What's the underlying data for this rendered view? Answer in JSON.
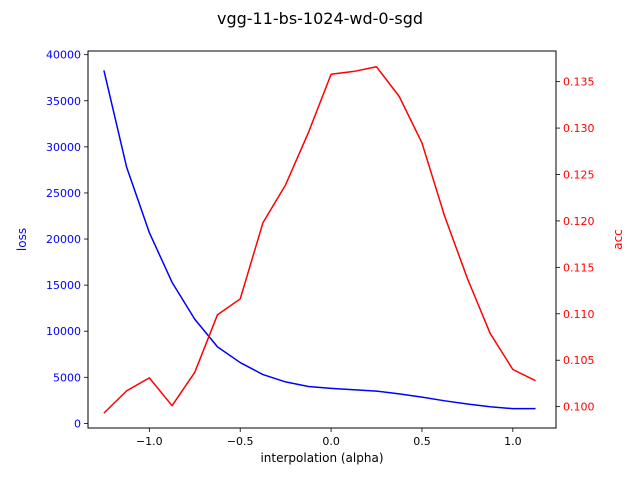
{
  "chart_data": {
    "type": "line",
    "title": "vgg-11-bs-1024-wd-0-sgd",
    "xlabel": "interpolation (alpha)",
    "ylabel_left": "loss",
    "ylabel_right": "acc",
    "xlim": [
      -1.3375,
      1.2375
    ],
    "ylim_left": [
      -500,
      40400
    ],
    "ylim_right": [
      0.0977,
      0.1383
    ],
    "x_ticks": [
      -1.0,
      -0.5,
      0.0,
      0.5,
      1.0
    ],
    "x_tick_labels": [
      "−1.0",
      "−0.5",
      "0.0",
      "0.5",
      "1.0"
    ],
    "y_left_ticks": [
      0,
      5000,
      10000,
      15000,
      20000,
      25000,
      30000,
      35000,
      40000
    ],
    "y_left_tick_labels": [
      "0",
      "5000",
      "10000",
      "15000",
      "20000",
      "25000",
      "30000",
      "35000",
      "40000"
    ],
    "y_right_ticks": [
      0.1,
      0.105,
      0.11,
      0.115,
      0.12,
      0.125,
      0.13,
      0.135
    ],
    "y_right_tick_labels": [
      "0.100",
      "0.105",
      "0.110",
      "0.115",
      "0.120",
      "0.125",
      "0.130",
      "0.135"
    ],
    "x": [
      -1.25,
      -1.125,
      -1.0,
      -0.875,
      -0.75,
      -0.625,
      -0.5,
      -0.375,
      -0.25,
      -0.125,
      0.0,
      0.125,
      0.25,
      0.375,
      0.5,
      0.625,
      0.75,
      0.875,
      1.0,
      1.125
    ],
    "series": [
      {
        "axis": "left",
        "color": "#0000ff",
        "values": [
          38300,
          27800,
          20700,
          15300,
          11300,
          8300,
          6600,
          5300,
          4500,
          4000,
          3800,
          3650,
          3500,
          3200,
          2850,
          2450,
          2100,
          1800,
          1600,
          1600
        ]
      },
      {
        "axis": "right",
        "color": "#ff0000",
        "values": [
          0.0993,
          0.1017,
          0.1031,
          0.1001,
          0.1037,
          0.1099,
          0.1116,
          0.1198,
          0.1239,
          0.1295,
          0.1358,
          0.1361,
          0.1366,
          0.1334,
          0.1284,
          0.1205,
          0.1138,
          0.1079,
          0.104,
          0.1028
        ]
      }
    ],
    "grid": false,
    "colors": {
      "left_axis": "#0000ff",
      "right_axis": "#ff0000",
      "frame": "#000000"
    }
  }
}
